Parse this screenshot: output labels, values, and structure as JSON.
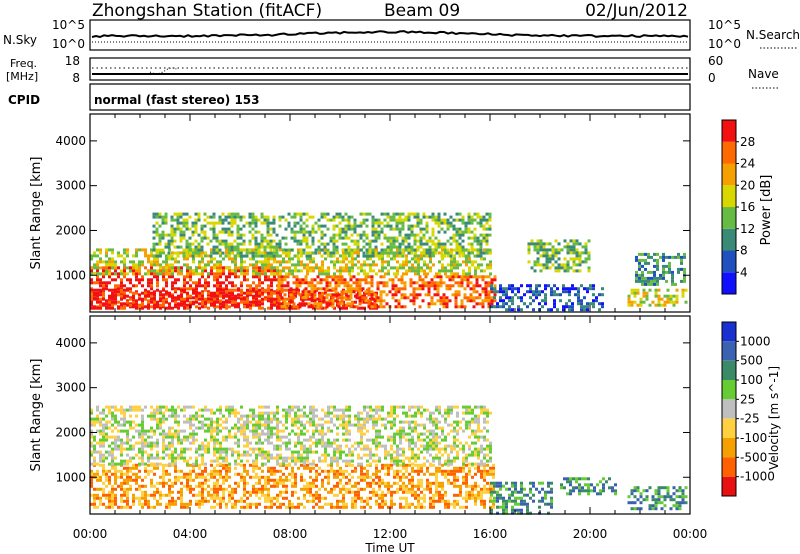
{
  "header": {
    "station": "Zhongshan Station (fitACF)",
    "beam": "Beam 09",
    "date": "02/Jun/2012"
  },
  "noise_panel": {
    "left_label": "N.Sky",
    "left_ticks": [
      "10^5",
      "10^0"
    ],
    "right_label": "N.Search",
    "right_ticks": [
      "10^5",
      "10^0"
    ]
  },
  "freq_panel": {
    "left_label_line1": "Freq.",
    "left_label_line2": "[MHz]",
    "left_ticks": [
      "18",
      "8"
    ],
    "right_label": "Nave",
    "right_ticks": [
      "60",
      "0"
    ]
  },
  "cpid": {
    "label": "CPID",
    "value": "normal (fast stereo) 153"
  },
  "chart_data": [
    {
      "type": "heatmap",
      "name": "power",
      "ylabel": "Slant Range [km]",
      "xlabel": "Time UT",
      "x_ticks": [
        "00:00",
        "04:00",
        "08:00",
        "12:00",
        "16:00",
        "20:00",
        "00:00"
      ],
      "x_range_hours": [
        0,
        24
      ],
      "y_ticks": [
        1000,
        2000,
        3000,
        4000
      ],
      "y_range_km": [
        180,
        4600
      ],
      "colorbar": {
        "label": "Power [dB]",
        "ticks": [
          "4",
          "8",
          "12",
          "16",
          "20",
          "24",
          "28"
        ],
        "colors": [
          "#1010ff",
          "#2050c0",
          "#3a8a78",
          "#66bb44",
          "#d8d800",
          "#f5a000",
          "#ff6a00",
          "#f21010"
        ]
      },
      "echo_regions": [
        {
          "t0": 0.0,
          "t1": 7.5,
          "r0": 300,
          "r1": 1200,
          "level": 7
        },
        {
          "t0": 0.0,
          "t1": 11.5,
          "r0": 250,
          "r1": 700,
          "level": 7
        },
        {
          "t0": 7.5,
          "t1": 16.2,
          "r0": 300,
          "r1": 1000,
          "level": 6
        },
        {
          "t0": 0.0,
          "t1": 16.0,
          "r0": 1000,
          "r1": 1600,
          "level": 4
        },
        {
          "t0": 2.5,
          "t1": 16.0,
          "r0": 1400,
          "r1": 2400,
          "level": 3
        },
        {
          "t0": 16.0,
          "t1": 20.5,
          "r0": 200,
          "r1": 800,
          "level": 1
        },
        {
          "t0": 17.5,
          "t1": 20.0,
          "r0": 1100,
          "r1": 1800,
          "level": 3
        },
        {
          "t0": 21.5,
          "t1": 23.8,
          "r0": 300,
          "r1": 700,
          "level": 4
        },
        {
          "t0": 21.8,
          "t1": 23.8,
          "r0": 800,
          "r1": 1500,
          "level": 2
        }
      ]
    },
    {
      "type": "heatmap",
      "name": "velocity",
      "ylabel": "Slant Range [km]",
      "xlabel": "Time UT",
      "x_ticks": [
        "00:00",
        "04:00",
        "08:00",
        "12:00",
        "16:00",
        "20:00",
        "00:00"
      ],
      "x_range_hours": [
        0,
        24
      ],
      "y_ticks": [
        1000,
        2000,
        3000,
        4000
      ],
      "y_range_km": [
        180,
        4600
      ],
      "colorbar": {
        "label": "Velocity [m s^-1]",
        "ticks": [
          "1000",
          "500",
          "100",
          "25",
          "-25",
          "-100",
          "-500",
          "-1000"
        ],
        "colors": [
          "#1a2fd0",
          "#3a62b0",
          "#3a8a68",
          "#66cc33",
          "#bfbfbf",
          "#ffd040",
          "#f5a000",
          "#ff6000",
          "#e81010"
        ]
      },
      "echo_regions": [
        {
          "t0": 0.0,
          "t1": 16.2,
          "r0": 300,
          "r1": 1300,
          "level": 6
        },
        {
          "t0": 0.0,
          "t1": 16.0,
          "r0": 1300,
          "r1": 2600,
          "level": 4
        },
        {
          "t0": 16.0,
          "t1": 18.5,
          "r0": 200,
          "r1": 900,
          "level": 2
        },
        {
          "t0": 18.8,
          "t1": 21.0,
          "r0": 600,
          "r1": 1000,
          "level": 2
        },
        {
          "t0": 21.5,
          "t1": 23.8,
          "r0": 300,
          "r1": 800,
          "level": 2
        },
        {
          "t0": 6.0,
          "t1": 7.5,
          "r0": 1900,
          "r1": 2400,
          "level": 4
        }
      ]
    }
  ]
}
